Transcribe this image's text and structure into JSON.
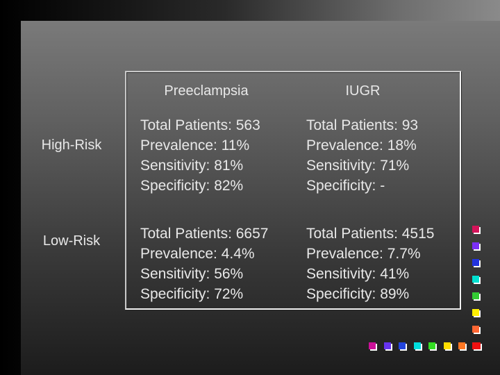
{
  "table": {
    "columns": [
      "Preeclampsia",
      "IUGR"
    ],
    "rows": [
      {
        "label": "High-Risk",
        "cells": [
          [
            "Total Patients: 563",
            "Prevalence: 11%",
            "Sensitivity: 81%",
            "Specificity: 82%"
          ],
          [
            "Total Patients: 93",
            "Prevalence: 18%",
            "Sensitivity: 71%",
            "Specificity: -"
          ]
        ]
      },
      {
        "label": "Low-Risk",
        "cells": [
          [
            "Total Patients: 6657",
            "Prevalence: 4.4%",
            "Sensitivity: 56%",
            "Specificity: 72%"
          ],
          [
            "Total Patients: 4515",
            "Prevalence: 7.7%",
            "Sensitivity: 41%",
            "Specificity: 89%"
          ]
        ]
      }
    ]
  },
  "decor": {
    "vertical_squares": [
      "#d4145a",
      "#7b2ff7",
      "#2233dd",
      "#00e0d0",
      "#33cc33",
      "#ffee00",
      "#ff6633",
      "#ee1111"
    ],
    "horizontal_squares": [
      "#cc1199",
      "#6633ee",
      "#2244dd",
      "#00dddd",
      "#33dd22",
      "#ffdd00",
      "#ff7722",
      "#ee1111"
    ]
  }
}
